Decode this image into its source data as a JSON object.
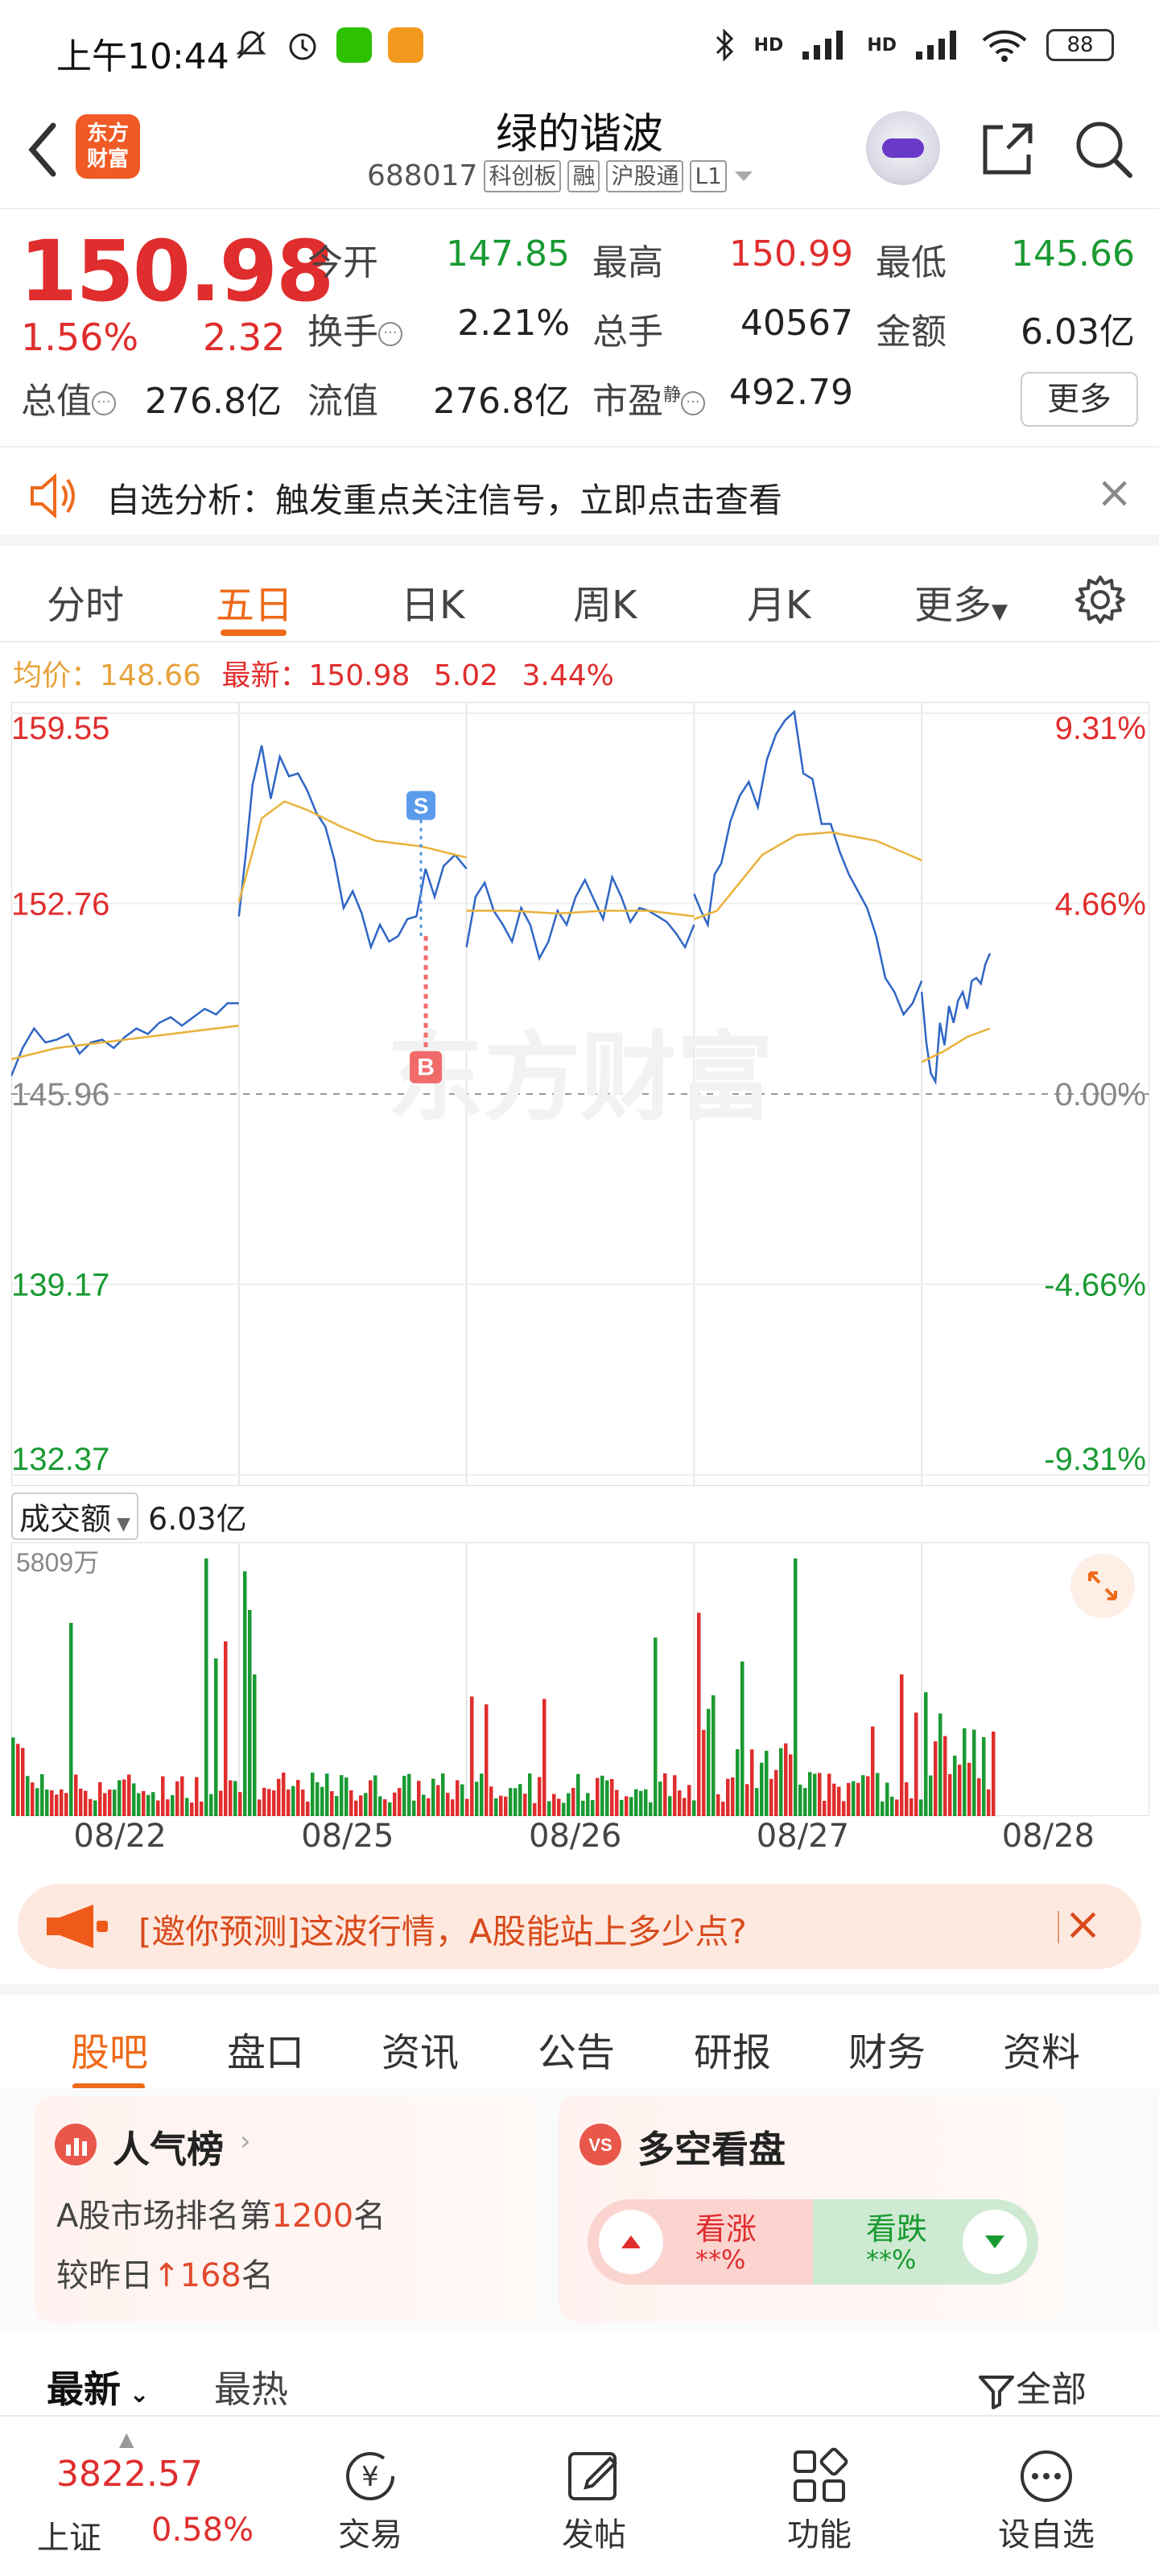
{
  "status_bar": {
    "time": "上午10:44",
    "network": "HD",
    "battery": "88"
  },
  "header": {
    "back_label": "<",
    "logo_text_1": "东方",
    "logo_text_2": "财富",
    "name": "绿的谐波",
    "code": "688017",
    "tags": [
      "科创板",
      "融",
      "沪股通",
      "L1"
    ]
  },
  "quote": {
    "price": "150.98",
    "change_pct": "1.56%",
    "change_amt": "2.32",
    "rows": [
      [
        {
          "label": "今开",
          "value": "147.85",
          "color": "green"
        },
        {
          "label": "最高",
          "value": "150.99",
          "color": "red"
        },
        {
          "label": "最低",
          "value": "145.66",
          "color": "green"
        }
      ],
      [
        {
          "label": "换手",
          "value": "2.21%",
          "color": "black"
        },
        {
          "label": "总手",
          "value": "40567",
          "color": "black"
        },
        {
          "label": "金额",
          "value": "6.03亿",
          "color": "black"
        }
      ]
    ],
    "row3": {
      "total_cap_label": "总值",
      "total_cap": "276.8亿",
      "float_cap_label": "流值",
      "float_cap": "276.8亿",
      "pe_label": "市盈",
      "pe_sup": "静",
      "pe": "492.79"
    },
    "more_label": "更多"
  },
  "alert": {
    "text": "自选分析：触发重点关注信号，立即点击查看",
    "close": "×"
  },
  "chart_tabs": [
    "分时",
    "五日",
    "日K",
    "周K",
    "月K",
    "更多"
  ],
  "chart_tabs_active": 1,
  "avg_line": {
    "avg_label": "均价：",
    "avg_value": "148.66",
    "latest_label": "最新：",
    "latest_value": "150.98",
    "chg": "5.02",
    "pct": "3.44%"
  },
  "chart_data": [
    {
      "type": "line",
      "title": "",
      "y_ticks_left": [
        "159.55",
        "152.76",
        "145.96",
        "139.17",
        "132.37"
      ],
      "y_ticks_right": [
        "9.31%",
        "4.66%",
        "0.00%",
        "-4.66%",
        "-9.31%"
      ],
      "ylim": [
        132.37,
        159.55
      ],
      "days": [
        "08/22",
        "08/25",
        "08/26",
        "08/27",
        "08/28"
      ],
      "watermark": "东方财富",
      "markers": [
        {
          "label": "S",
          "day": "08/25",
          "price": 156.2
        },
        {
          "label": "B",
          "day": "08/25",
          "price": 151.8
        }
      ],
      "series": [
        {
          "points": [
            [
              0,
              146.6
            ],
            [
              0.05,
              147.6
            ],
            [
              0.1,
              148.3
            ],
            [
              0.15,
              147.8
            ],
            [
              0.2,
              147.9
            ],
            [
              0.25,
              148.1
            ],
            [
              0.3,
              147.4
            ],
            [
              0.35,
              147.8
            ],
            [
              0.4,
              147.9
            ],
            [
              0.45,
              147.6
            ],
            [
              0.5,
              148.0
            ],
            [
              0.55,
              148.3
            ],
            [
              0.6,
              148.1
            ],
            [
              0.65,
              148.5
            ],
            [
              0.7,
              148.7
            ],
            [
              0.75,
              148.4
            ],
            [
              0.8,
              148.7
            ],
            [
              0.85,
              149.0
            ],
            [
              0.9,
              148.8
            ],
            [
              0.95,
              149.2
            ],
            [
              1.0,
              149.2
            ],
            [
              1.0,
              152.3
            ],
            [
              1.03,
              154.5
            ],
            [
              1.06,
              157.0
            ],
            [
              1.1,
              158.4
            ],
            [
              1.14,
              156.5
            ],
            [
              1.18,
              158.0
            ],
            [
              1.22,
              157.3
            ],
            [
              1.26,
              157.4
            ],
            [
              1.3,
              156.8
            ],
            [
              1.34,
              156.0
            ],
            [
              1.38,
              155.5
            ],
            [
              1.42,
              154.3
            ],
            [
              1.46,
              152.6
            ],
            [
              1.5,
              153.2
            ],
            [
              1.54,
              152.4
            ],
            [
              1.58,
              151.2
            ],
            [
              1.62,
              152.0
            ],
            [
              1.66,
              151.4
            ],
            [
              1.7,
              151.6
            ],
            [
              1.74,
              152.2
            ],
            [
              1.78,
              152.3
            ],
            [
              1.82,
              154.0
            ],
            [
              1.86,
              153.0
            ],
            [
              1.9,
              154.1
            ],
            [
              1.95,
              154.5
            ],
            [
              2.0,
              154.0
            ],
            [
              2.0,
              151.2
            ],
            [
              2.04,
              153.0
            ],
            [
              2.08,
              153.5
            ],
            [
              2.12,
              152.5
            ],
            [
              2.16,
              152.0
            ],
            [
              2.2,
              151.4
            ],
            [
              2.24,
              152.6
            ],
            [
              2.28,
              152.0
            ],
            [
              2.32,
              150.8
            ],
            [
              2.36,
              151.4
            ],
            [
              2.4,
              152.5
            ],
            [
              2.44,
              152.0
            ],
            [
              2.48,
              153.0
            ],
            [
              2.52,
              153.6
            ],
            [
              2.56,
              152.9
            ],
            [
              2.6,
              152.2
            ],
            [
              2.64,
              153.7
            ],
            [
              2.68,
              153.0
            ],
            [
              2.72,
              152.1
            ],
            [
              2.76,
              152.6
            ],
            [
              2.8,
              152.5
            ],
            [
              2.84,
              152.3
            ],
            [
              2.88,
              152.1
            ],
            [
              2.92,
              151.7
            ],
            [
              2.96,
              151.2
            ],
            [
              3.0,
              152.0
            ],
            [
              3.0,
              153.1
            ],
            [
              3.03,
              152.5
            ],
            [
              3.06,
              152.0
            ],
            [
              3.09,
              153.8
            ],
            [
              3.12,
              154.2
            ],
            [
              3.16,
              155.7
            ],
            [
              3.2,
              156.6
            ],
            [
              3.24,
              157.1
            ],
            [
              3.28,
              156.2
            ],
            [
              3.32,
              157.9
            ],
            [
              3.36,
              158.8
            ],
            [
              3.4,
              159.3
            ],
            [
              3.44,
              159.6
            ],
            [
              3.48,
              157.4
            ],
            [
              3.52,
              157.2
            ],
            [
              3.56,
              155.6
            ],
            [
              3.6,
              155.6
            ],
            [
              3.64,
              154.6
            ],
            [
              3.68,
              153.8
            ],
            [
              3.72,
              153.2
            ],
            [
              3.76,
              152.6
            ],
            [
              3.8,
              151.6
            ],
            [
              3.84,
              150.1
            ],
            [
              3.88,
              149.6
            ],
            [
              3.92,
              148.8
            ],
            [
              3.96,
              149.2
            ],
            [
              4.0,
              150.0
            ],
            [
              4.0,
              149.6
            ],
            [
              4.02,
              147.8
            ],
            [
              4.04,
              146.7
            ],
            [
              4.06,
              146.4
            ],
            [
              4.08,
              148.5
            ],
            [
              4.1,
              147.7
            ],
            [
              4.12,
              149.1
            ],
            [
              4.14,
              148.5
            ],
            [
              4.16,
              149.3
            ],
            [
              4.18,
              149.6
            ],
            [
              4.2,
              149.0
            ],
            [
              4.22,
              150.0
            ],
            [
              4.24,
              150.1
            ],
            [
              4.26,
              149.9
            ],
            [
              4.28,
              150.6
            ],
            [
              4.3,
              150.98
            ]
          ],
          "name": ""
        },
        {
          "points": [
            [
              0,
              147.2
            ],
            [
              0.2,
              147.6
            ],
            [
              0.4,
              147.8
            ],
            [
              0.6,
              148.0
            ],
            [
              0.8,
              148.2
            ],
            [
              1.0,
              148.4
            ],
            [
              1.0,
              152.8
            ],
            [
              1.1,
              155.8
            ],
            [
              1.2,
              156.4
            ],
            [
              1.3,
              156.1
            ],
            [
              1.45,
              155.5
            ],
            [
              1.6,
              155.0
            ],
            [
              1.8,
              154.8
            ],
            [
              2.0,
              154.4
            ],
            [
              2.0,
              152.5
            ],
            [
              2.2,
              152.5
            ],
            [
              2.4,
              152.4
            ],
            [
              2.6,
              152.5
            ],
            [
              2.8,
              152.5
            ],
            [
              3.0,
              152.3
            ],
            [
              3.0,
              152.2
            ],
            [
              3.1,
              152.5
            ],
            [
              3.2,
              153.5
            ],
            [
              3.3,
              154.5
            ],
            [
              3.45,
              155.2
            ],
            [
              3.6,
              155.3
            ],
            [
              3.8,
              155.0
            ],
            [
              4.0,
              154.3
            ],
            [
              4.0,
              147.1
            ],
            [
              4.1,
              147.5
            ],
            [
              4.2,
              148.0
            ],
            [
              4.3,
              148.3
            ]
          ],
          "name": ""
        }
      ]
    },
    {
      "type": "bar",
      "title": "",
      "label": "成交额",
      "total": "6.03亿",
      "max_label": "5809万"
    }
  ],
  "predict_banner": {
    "text": "[邀你预测]这波行情，A股能站上多少点?",
    "close": "×"
  },
  "bottom_tabs": [
    "股吧",
    "盘口",
    "资讯",
    "公告",
    "研报",
    "财务",
    "资料"
  ],
  "bottom_tabs_active": 0,
  "popularity_card": {
    "title": "人气榜",
    "line1_prefix": "A股市场排名第",
    "rank": "1200",
    "line1_suffix": "名",
    "line2_prefix": "较昨日",
    "change": "168",
    "line2_suffix": "名"
  },
  "sentiment_card": {
    "title": "多空看盘",
    "up_label": "看涨",
    "up_value": "**%",
    "down_label": "看跌",
    "down_value": "**%"
  },
  "filters": {
    "latest": "最新",
    "hot": "最热",
    "all": "全部"
  },
  "bottom_nav": {
    "index_value": "3822.57",
    "index_name": "上证",
    "index_pct": "0.58%",
    "items": [
      "交易",
      "发帖",
      "功能",
      "设自选"
    ]
  },
  "colors": {
    "up": "#e02d2d",
    "down": "#1a9a32",
    "accent": "#ef6a1a",
    "price_line": "#2f66c4",
    "avg_line": "#e8b23a"
  }
}
